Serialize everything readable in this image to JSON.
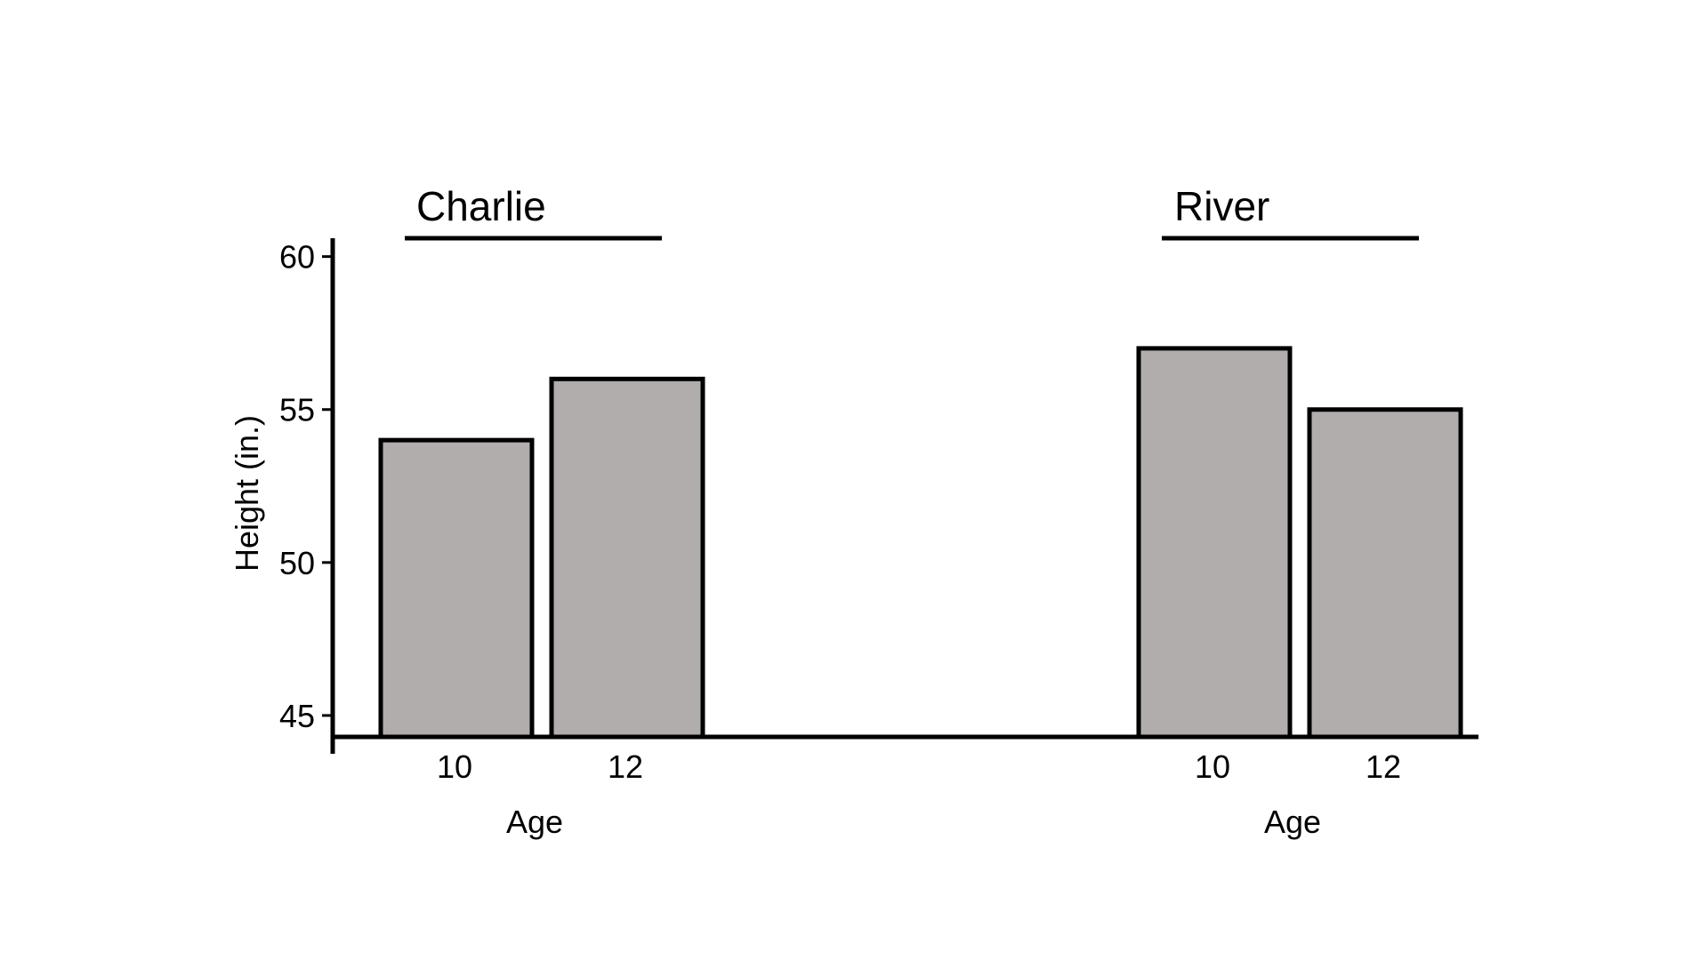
{
  "chart_data": {
    "type": "bar",
    "ylabel": "Height (in.)",
    "ylim": [
      44.3,
      60.6
    ],
    "yticks": [
      45,
      50,
      55,
      60
    ],
    "grid": false,
    "groups": [
      {
        "name": "Charlie",
        "xlabel": "Age",
        "categories": [
          "10",
          "12"
        ],
        "values": [
          54,
          56
        ]
      },
      {
        "name": "River",
        "xlabel": "Age",
        "categories": [
          "10",
          "12"
        ],
        "values": [
          57,
          55
        ]
      }
    ]
  },
  "colors": {
    "bar_fill": "#b0adac",
    "stroke": "#000000"
  }
}
